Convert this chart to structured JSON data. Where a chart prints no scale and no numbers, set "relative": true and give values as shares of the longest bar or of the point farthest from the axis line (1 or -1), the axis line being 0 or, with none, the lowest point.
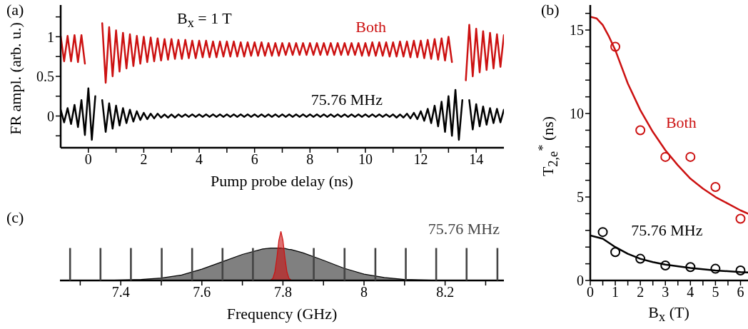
{
  "chart_data": [
    {
      "type": "line",
      "xlabel": "Pump probe delay (ns)",
      "ylabel": "FR ampl. (arb. u.)",
      "annotations": [
        "(a)",
        "B$_{x}$ = 1 T"
      ],
      "xlim": [
        -1,
        15
      ],
      "ylim": [
        -0.4,
        1.4
      ],
      "xticks": [
        0,
        {
          "value": 1,
          "label": null
        },
        2,
        {
          "value": 3,
          "label": null
        },
        4,
        {
          "value": 5,
          "label": null
        },
        6,
        {
          "value": 7,
          "label": null
        },
        8,
        {
          "value": 9,
          "label": null
        },
        10,
        {
          "value": 11,
          "label": null
        },
        12,
        {
          "value": 13,
          "label": null
        },
        14
      ],
      "yticks": [
        {
          "value": -0.25,
          "label": null
        },
        0,
        {
          "value": 0.25,
          "label": null
        },
        0.5,
        {
          "value": 0.75,
          "label": null
        },
        1,
        {
          "value": 1.25,
          "label": null
        }
      ],
      "grid": false,
      "x": [
        -1,
        -0.875,
        -0.75,
        -0.625,
        -0.5,
        -0.375,
        -0.25,
        -0.125,
        0,
        0.125,
        0.25,
        0.375,
        0.5,
        0.625,
        0.75,
        0.875,
        1,
        1.125,
        1.25,
        1.375,
        1.5,
        1.625,
        1.75,
        1.875,
        2,
        2.125,
        2.25,
        2.375,
        2.5,
        2.625,
        2.75,
        2.875,
        3,
        3.125,
        3.25,
        3.375,
        3.5,
        3.625,
        3.75,
        3.875,
        4,
        4.125,
        4.25,
        4.375,
        4.5,
        4.625,
        4.75,
        4.875,
        5,
        5.125,
        5.25,
        5.375,
        5.5,
        5.625,
        5.75,
        5.875,
        6,
        6.125,
        6.25,
        6.375,
        6.5,
        6.625,
        6.75,
        6.875,
        7,
        7.125,
        7.25,
        7.375,
        7.5,
        7.625,
        7.75,
        7.875,
        8,
        8.125,
        8.25,
        8.375,
        8.5,
        8.625,
        8.75,
        8.875,
        9,
        9.125,
        9.25,
        9.375,
        9.5,
        9.625,
        9.75,
        9.875,
        10,
        10.125,
        10.25,
        10.375,
        10.5,
        10.625,
        10.75,
        10.875,
        11,
        11.125,
        11.25,
        11.375,
        11.5,
        11.625,
        11.75,
        11.875,
        12,
        12.125,
        12.25,
        12.375,
        12.5,
        12.625,
        12.75,
        12.875,
        13,
        13.125,
        13.25,
        13.375,
        13.5,
        13.625,
        13.75,
        13.875,
        14,
        14.125,
        14.25,
        14.375,
        14.5,
        14.625,
        14.75,
        14.875,
        15
      ],
      "series": [
        {
          "name": "Both",
          "color": "#cc1111",
          "values": [
            1.01,
            0.69,
            1.01,
            0.69,
            1.02,
            0.68,
            1.02,
            0.66,
            null,
            null,
            null,
            null,
            1.17,
            0.42,
            1.12,
            0.5,
            1.08,
            0.56,
            1.05,
            0.6,
            1.03,
            0.63,
            1.01,
            0.66,
            1.0,
            0.68,
            0.99,
            0.69,
            0.98,
            0.7,
            0.97,
            0.71,
            0.97,
            0.72,
            0.96,
            0.72,
            0.96,
            0.73,
            0.95,
            0.73,
            0.95,
            0.74,
            0.95,
            0.74,
            0.94,
            0.74,
            0.94,
            0.75,
            0.94,
            0.75,
            0.94,
            0.75,
            0.93,
            0.75,
            0.93,
            0.76,
            0.93,
            0.76,
            0.93,
            0.76,
            0.92,
            0.76,
            0.92,
            0.76,
            0.92,
            0.77,
            0.92,
            0.77,
            0.92,
            0.77,
            0.92,
            0.77,
            0.92,
            0.77,
            0.92,
            0.77,
            0.92,
            0.77,
            0.92,
            0.77,
            0.92,
            0.77,
            0.92,
            0.77,
            0.92,
            0.77,
            0.92,
            0.76,
            0.92,
            0.76,
            0.93,
            0.76,
            0.93,
            0.76,
            0.93,
            0.75,
            0.93,
            0.75,
            0.94,
            0.75,
            0.94,
            0.74,
            0.95,
            0.74,
            0.95,
            0.73,
            0.96,
            0.72,
            0.97,
            0.71,
            0.98,
            0.7,
            1.0,
            0.68,
            null,
            null,
            null,
            0.45,
            1.15,
            0.5,
            1.1,
            0.55,
            1.07,
            0.58,
            1.05,
            0.6,
            1.03,
            0.62,
            1.02
          ]
        },
        {
          "name": "75.76 MHz",
          "color": "#000000",
          "values": [
            0.08,
            -0.08,
            0.1,
            -0.1,
            0.14,
            -0.14,
            0.2,
            -0.24,
            0.35,
            -0.3,
            0.25,
            null,
            0.2,
            -0.2,
            0.16,
            -0.16,
            0.13,
            -0.12,
            0.1,
            -0.09,
            0.08,
            -0.07,
            0.06,
            -0.05,
            0.04,
            -0.04,
            0.03,
            -0.03,
            0.03,
            -0.02,
            0.02,
            -0.02,
            0.02,
            -0.02,
            0.02,
            -0.01,
            0.02,
            -0.01,
            0.02,
            -0.01,
            0.02,
            -0.01,
            0.02,
            -0.01,
            0.02,
            -0.01,
            0.02,
            -0.01,
            0.02,
            -0.01,
            0.02,
            -0.01,
            0.02,
            -0.01,
            0.02,
            -0.01,
            0.02,
            -0.01,
            0.02,
            -0.01,
            0.02,
            -0.01,
            0.02,
            -0.01,
            0.02,
            -0.01,
            0.02,
            -0.01,
            0.02,
            -0.01,
            0.02,
            -0.01,
            0.02,
            -0.01,
            0.02,
            -0.01,
            0.02,
            -0.01,
            0.02,
            -0.01,
            0.02,
            -0.01,
            0.02,
            -0.01,
            0.02,
            -0.01,
            0.02,
            -0.01,
            0.02,
            -0.01,
            0.02,
            -0.01,
            0.02,
            -0.01,
            0.02,
            -0.01,
            0.02,
            -0.02,
            0.02,
            -0.02,
            0.03,
            -0.03,
            0.04,
            -0.04,
            0.06,
            -0.06,
            0.09,
            -0.09,
            0.13,
            -0.13,
            0.18,
            -0.2,
            0.25,
            -0.25,
            0.33,
            -0.3,
            0.2,
            null,
            0.2,
            -0.17,
            0.15,
            -0.13,
            0.12,
            -0.11,
            0.1,
            -0.09,
            0.09,
            -0.08,
            0.08
          ]
        }
      ]
    },
    {
      "type": "scatter",
      "xlabel": "B$_{x}$ (T)",
      "ylabel": "T$_{2,e}$$^{*}$ (ns)",
      "annotations": [
        "(b)"
      ],
      "xlim": [
        0,
        6.3
      ],
      "ylim": [
        0,
        16.5
      ],
      "xticks": [
        0,
        {
          "value": 0.5,
          "label": null
        },
        1,
        {
          "value": 1.5,
          "label": null
        },
        2,
        {
          "value": 2.5,
          "label": null
        },
        3,
        {
          "value": 3.5,
          "label": null
        },
        4,
        {
          "value": 4.5,
          "label": null
        },
        5,
        {
          "value": 5.5,
          "label": null
        },
        6
      ],
      "yticks": [
        0,
        {
          "value": 1,
          "label": null
        },
        {
          "value": 2,
          "label": null
        },
        {
          "value": 3,
          "label": null
        },
        {
          "value": 4,
          "label": null
        },
        5,
        {
          "value": 6,
          "label": null
        },
        {
          "value": 7,
          "label": null
        },
        {
          "value": 8,
          "label": null
        },
        {
          "value": 9,
          "label": null
        },
        10,
        {
          "value": 11,
          "label": null
        },
        {
          "value": 12,
          "label": null
        },
        {
          "value": 13,
          "label": null
        },
        {
          "value": 14,
          "label": null
        },
        15,
        {
          "value": 16,
          "label": null
        }
      ],
      "grid": false,
      "series": [
        {
          "name": "Both",
          "type": "scatter",
          "marker": "circle",
          "color": "#cc1111",
          "x": [
            1,
            2,
            3,
            4,
            5,
            6
          ],
          "values": [
            14.0,
            9.0,
            7.4,
            7.4,
            5.6,
            3.7
          ]
        },
        {
          "type": "line",
          "color": "#cc1111",
          "x": [
            0,
            0.25,
            0.5,
            0.75,
            1,
            1.5,
            2,
            2.5,
            3,
            3.5,
            4,
            4.5,
            5,
            5.5,
            6,
            6.3
          ],
          "values": [
            15.8,
            15.7,
            15.3,
            14.6,
            13.8,
            11.8,
            10.2,
            8.9,
            7.8,
            6.9,
            6.1,
            5.5,
            5.0,
            4.6,
            4.2,
            4.0
          ]
        },
        {
          "name": "75.76 MHz",
          "type": "scatter",
          "marker": "circle",
          "color": "#000000",
          "x": [
            0.5,
            1,
            2,
            3,
            4,
            5,
            6
          ],
          "values": [
            2.9,
            1.7,
            1.3,
            0.9,
            0.8,
            0.7,
            0.6
          ]
        },
        {
          "type": "line",
          "color": "#000000",
          "x": [
            0,
            0.5,
            1,
            1.5,
            2,
            2.5,
            3,
            4,
            5,
            6,
            6.3
          ],
          "values": [
            2.7,
            2.5,
            2.0,
            1.6,
            1.3,
            1.1,
            0.95,
            0.75,
            0.6,
            0.5,
            0.48
          ]
        }
      ]
    },
    {
      "type": "area",
      "xlabel": "Frequency (GHz)",
      "annotations": [
        "(c)",
        "75.76 MHz"
      ],
      "relative": true,
      "tick_labels": "x",
      "xlim": [
        7.25,
        8.345
      ],
      "xticks": [
        {
          "value": 7.3,
          "label": null
        },
        7.4,
        {
          "value": 7.5,
          "label": null
        },
        7.6,
        {
          "value": 7.7,
          "label": null
        },
        7.8,
        {
          "value": 7.9,
          "label": null
        },
        8,
        {
          "value": 8.1,
          "label": null
        },
        8.2,
        {
          "value": 8.3,
          "label": null
        }
      ],
      "grid": false,
      "x": [
        7.25,
        7.3,
        7.35,
        7.4,
        7.45,
        7.5,
        7.55,
        7.6,
        7.65,
        7.7,
        7.75,
        7.77,
        7.775,
        7.78,
        7.785,
        7.79,
        7.795,
        7.8,
        7.805,
        7.81,
        7.815,
        7.82,
        7.85,
        7.9,
        7.95,
        8,
        8.05,
        8.1,
        8.15,
        8.2,
        8.25,
        8.3,
        8.345
      ],
      "series": [
        {
          "type": "area",
          "color": "#808080",
          "values": [
            0,
            0,
            0,
            0.01,
            0.02,
            0.05,
            0.11,
            0.23,
            0.38,
            0.53,
            0.64,
            0.66,
            0.66,
            0.66,
            0.66,
            0.66,
            0.66,
            0.65,
            0.65,
            0.64,
            0.63,
            0.63,
            0.56,
            0.41,
            0.25,
            0.13,
            0.06,
            0.02,
            0.01,
            0,
            0,
            0,
            0
          ]
        },
        {
          "type": "bar",
          "color": "#444444",
          "x": [
            7.275,
            7.35,
            7.425,
            7.501,
            7.576,
            7.651,
            7.726,
            7.876,
            7.952,
            8.028,
            8.103,
            8.178,
            8.253,
            8.329
          ],
          "values": [
            0.66,
            0.66,
            0.66,
            0.66,
            0.66,
            0.66,
            0.66,
            0.66,
            0.66,
            0.66,
            0.66,
            0.66,
            0.66,
            0.66
          ]
        },
        {
          "type": "area",
          "color": "#cc1111",
          "values": [
            0,
            0,
            0,
            0,
            0,
            0,
            0,
            0,
            0,
            0,
            0,
            0.01,
            0.04,
            0.17,
            0.46,
            0.82,
            1,
            0.82,
            0.46,
            0.17,
            0.04,
            0.01,
            0,
            0,
            0,
            0,
            0,
            0,
            0,
            0,
            0,
            0,
            0
          ]
        }
      ]
    }
  ]
}
